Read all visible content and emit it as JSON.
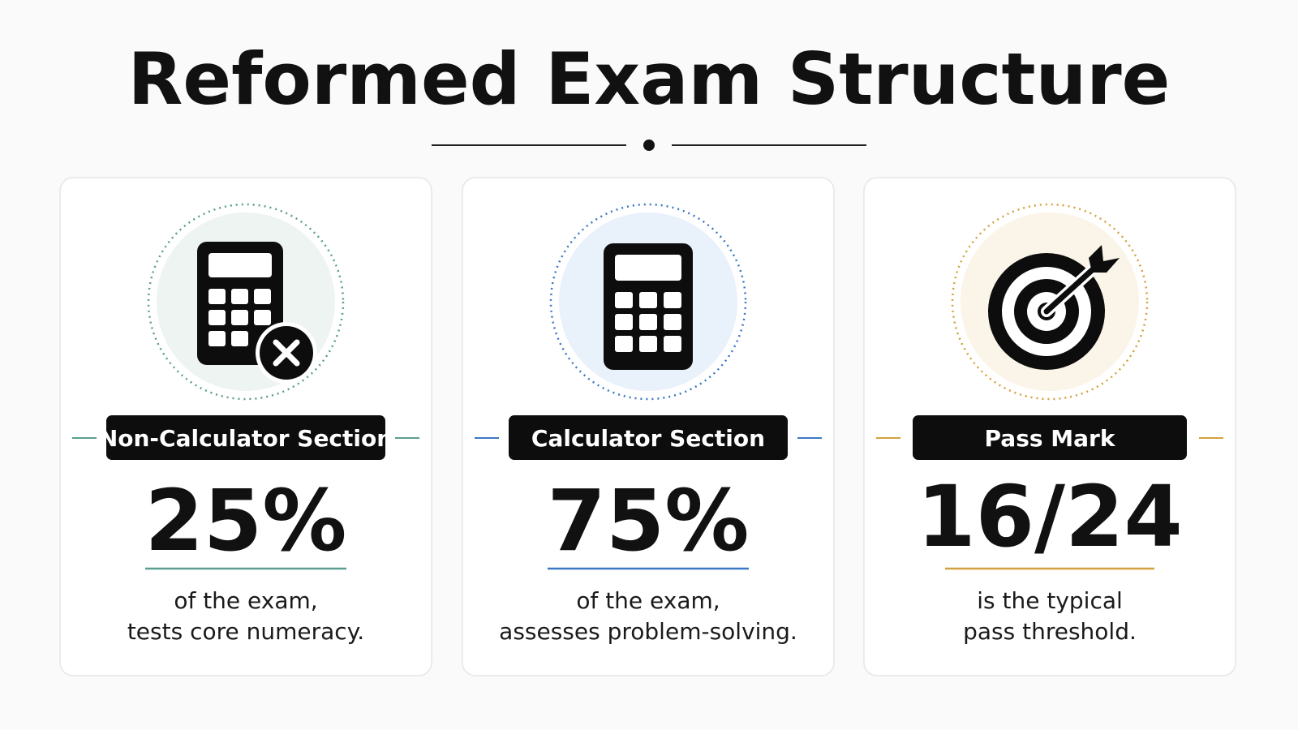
{
  "title": "Reformed Exam Structure",
  "cards": [
    {
      "label": "Non-Calculator Section",
      "value": "25%",
      "description": [
        "of the exam,",
        "tests core numeracy."
      ]
    },
    {
      "label": "Calculator Section",
      "value": "75%",
      "description": [
        "of the exam,",
        "assesses problem-solving."
      ]
    },
    {
      "label": "Pass Mark",
      "value": "16/24",
      "description": [
        "is the typical",
        "pass threshold."
      ]
    }
  ]
}
